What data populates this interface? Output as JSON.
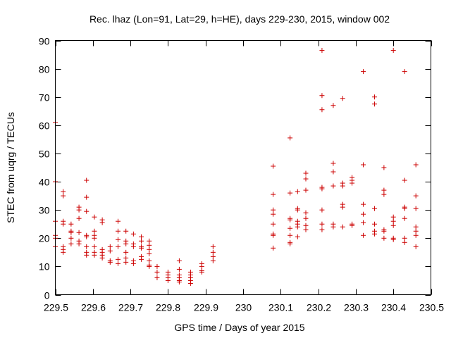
{
  "chart_data": {
    "type": "scatter",
    "title": "Rec. lhaz (Lon=91, Lat=29, h=HE), days 229-230, 2015, window 002",
    "xlabel": "GPS time / Days of year 2015",
    "ylabel": "STEC from uqrg / TECUs",
    "xlim": [
      229.5,
      230.5
    ],
    "ylim": [
      0,
      90
    ],
    "x_ticks": [
      229.5,
      229.6,
      229.7,
      229.8,
      229.9,
      230.0,
      230.1,
      230.2,
      230.3,
      230.4,
      230.5
    ],
    "x_tick_labels": [
      "229.5",
      "229.6",
      "229.7",
      "229.8",
      "229.9",
      "230",
      "230.1",
      "230.2",
      "230.3",
      "230.4",
      "230.5"
    ],
    "y_ticks": [
      0,
      10,
      20,
      30,
      40,
      50,
      60,
      70,
      80,
      90
    ],
    "y_tick_labels": [
      "0",
      "10",
      "20",
      "30",
      "40",
      "50",
      "60",
      "70",
      "80",
      "90"
    ],
    "grid": false,
    "marker": "+",
    "marker_color": "#cc0000",
    "series": [
      {
        "points": [
          [
            229.5,
            61
          ],
          [
            229.5,
            40
          ],
          [
            229.5,
            26
          ],
          [
            229.5,
            21
          ],
          [
            229.5,
            20
          ],
          [
            229.5,
            17
          ],
          [
            229.521,
            36.5
          ],
          [
            229.521,
            35
          ],
          [
            229.521,
            26
          ],
          [
            229.521,
            25
          ],
          [
            229.521,
            17
          ],
          [
            229.521,
            16
          ],
          [
            229.521,
            15
          ],
          [
            229.542,
            25
          ],
          [
            229.542,
            22.5
          ],
          [
            229.542,
            22
          ],
          [
            229.542,
            20
          ],
          [
            229.542,
            18
          ],
          [
            229.563,
            31
          ],
          [
            229.563,
            30
          ],
          [
            229.563,
            27
          ],
          [
            229.563,
            22
          ],
          [
            229.563,
            19
          ],
          [
            229.563,
            18
          ],
          [
            229.583,
            40.5
          ],
          [
            229.583,
            34.5
          ],
          [
            229.583,
            29.5
          ],
          [
            229.583,
            21
          ],
          [
            229.583,
            20.5
          ],
          [
            229.583,
            17
          ],
          [
            229.583,
            15
          ],
          [
            229.583,
            14
          ],
          [
            229.604,
            27.5
          ],
          [
            229.604,
            22.5
          ],
          [
            229.604,
            21
          ],
          [
            229.604,
            20
          ],
          [
            229.604,
            17
          ],
          [
            229.604,
            15
          ],
          [
            229.604,
            14
          ],
          [
            229.625,
            26.5
          ],
          [
            229.625,
            25.5
          ],
          [
            229.625,
            16
          ],
          [
            229.625,
            15
          ],
          [
            229.625,
            14
          ],
          [
            229.625,
            13
          ],
          [
            229.646,
            17
          ],
          [
            229.646,
            15.5
          ],
          [
            229.646,
            12
          ],
          [
            229.646,
            11.5
          ],
          [
            229.667,
            26
          ],
          [
            229.667,
            22.5
          ],
          [
            229.667,
            19.5
          ],
          [
            229.667,
            17
          ],
          [
            229.667,
            12.5
          ],
          [
            229.667,
            11
          ],
          [
            229.688,
            22.5
          ],
          [
            229.688,
            19
          ],
          [
            229.688,
            18
          ],
          [
            229.688,
            15
          ],
          [
            229.688,
            13
          ],
          [
            229.688,
            11.5
          ],
          [
            229.708,
            21.5
          ],
          [
            229.708,
            18
          ],
          [
            229.708,
            17
          ],
          [
            229.708,
            12
          ],
          [
            229.708,
            11
          ],
          [
            229.729,
            20.5
          ],
          [
            229.729,
            19
          ],
          [
            229.729,
            17
          ],
          [
            229.729,
            16.5
          ],
          [
            229.729,
            13.5
          ],
          [
            229.729,
            12.5
          ],
          [
            229.75,
            19
          ],
          [
            229.75,
            17.5
          ],
          [
            229.75,
            16
          ],
          [
            229.75,
            14.5
          ],
          [
            229.75,
            12
          ],
          [
            229.75,
            10.5
          ],
          [
            229.75,
            10
          ],
          [
            229.771,
            10
          ],
          [
            229.771,
            8
          ],
          [
            229.771,
            6
          ],
          [
            229.8,
            8
          ],
          [
            229.8,
            7
          ],
          [
            229.8,
            6
          ],
          [
            229.8,
            5
          ],
          [
            229.83,
            12
          ],
          [
            229.83,
            9
          ],
          [
            229.83,
            7
          ],
          [
            229.83,
            6
          ],
          [
            229.83,
            5
          ],
          [
            229.83,
            4.5
          ],
          [
            229.86,
            8
          ],
          [
            229.86,
            7
          ],
          [
            229.86,
            6
          ],
          [
            229.86,
            5
          ],
          [
            229.86,
            4
          ],
          [
            229.89,
            11
          ],
          [
            229.89,
            10
          ],
          [
            229.89,
            8.5
          ],
          [
            229.89,
            8
          ],
          [
            229.92,
            17
          ],
          [
            229.92,
            15
          ],
          [
            229.92,
            13.5
          ],
          [
            229.92,
            12
          ],
          [
            230.08,
            45.5
          ],
          [
            230.08,
            35.5
          ],
          [
            230.08,
            30
          ],
          [
            230.08,
            28.5
          ],
          [
            230.08,
            25
          ],
          [
            230.08,
            21.5
          ],
          [
            230.08,
            21
          ],
          [
            230.08,
            16.5
          ],
          [
            230.125,
            55.5
          ],
          [
            230.125,
            36
          ],
          [
            230.125,
            27
          ],
          [
            230.125,
            26.5
          ],
          [
            230.125,
            23.5
          ],
          [
            230.125,
            21
          ],
          [
            230.125,
            18.5
          ],
          [
            230.125,
            18
          ],
          [
            230.145,
            36.5
          ],
          [
            230.145,
            30.5
          ],
          [
            230.145,
            30
          ],
          [
            230.145,
            26
          ],
          [
            230.145,
            25
          ],
          [
            230.145,
            24
          ],
          [
            230.145,
            20.5
          ],
          [
            230.167,
            43
          ],
          [
            230.167,
            41
          ],
          [
            230.167,
            37
          ],
          [
            230.167,
            29
          ],
          [
            230.167,
            27
          ],
          [
            230.167,
            24.5
          ],
          [
            230.167,
            23
          ],
          [
            230.21,
            86.5
          ],
          [
            230.21,
            70.5
          ],
          [
            230.21,
            65.5
          ],
          [
            230.21,
            38
          ],
          [
            230.21,
            37.5
          ],
          [
            230.21,
            30
          ],
          [
            230.21,
            25
          ],
          [
            230.21,
            23
          ],
          [
            230.24,
            67
          ],
          [
            230.24,
            46.5
          ],
          [
            230.24,
            43.5
          ],
          [
            230.24,
            38.5
          ],
          [
            230.24,
            25
          ],
          [
            230.24,
            24
          ],
          [
            230.265,
            69.5
          ],
          [
            230.265,
            39.5
          ],
          [
            230.265,
            38.5
          ],
          [
            230.265,
            32
          ],
          [
            230.265,
            31
          ],
          [
            230.265,
            24
          ],
          [
            230.29,
            41.5
          ],
          [
            230.29,
            40.5
          ],
          [
            230.29,
            39.5
          ],
          [
            230.29,
            25
          ],
          [
            230.29,
            24.5
          ],
          [
            230.32,
            79
          ],
          [
            230.32,
            46
          ],
          [
            230.32,
            32
          ],
          [
            230.32,
            28.5
          ],
          [
            230.32,
            25.5
          ],
          [
            230.32,
            21
          ],
          [
            230.35,
            70
          ],
          [
            230.35,
            67.5
          ],
          [
            230.35,
            30.5
          ],
          [
            230.35,
            25
          ],
          [
            230.35,
            22.5
          ],
          [
            230.35,
            21.5
          ],
          [
            230.375,
            45
          ],
          [
            230.375,
            37
          ],
          [
            230.375,
            35.5
          ],
          [
            230.375,
            23
          ],
          [
            230.375,
            22.5
          ],
          [
            230.375,
            20
          ],
          [
            230.4,
            86.5
          ],
          [
            230.4,
            27.5
          ],
          [
            230.4,
            26
          ],
          [
            230.4,
            24.5
          ],
          [
            230.4,
            20
          ],
          [
            230.4,
            19.5
          ],
          [
            230.43,
            79
          ],
          [
            230.43,
            40.5
          ],
          [
            230.43,
            31
          ],
          [
            230.43,
            30.5
          ],
          [
            230.43,
            27
          ],
          [
            230.43,
            20
          ],
          [
            230.43,
            18.5
          ],
          [
            230.46,
            46
          ],
          [
            230.46,
            35
          ],
          [
            230.46,
            30.5
          ],
          [
            230.46,
            24
          ],
          [
            230.46,
            22.5
          ],
          [
            230.46,
            21
          ],
          [
            230.46,
            17
          ]
        ]
      }
    ]
  }
}
